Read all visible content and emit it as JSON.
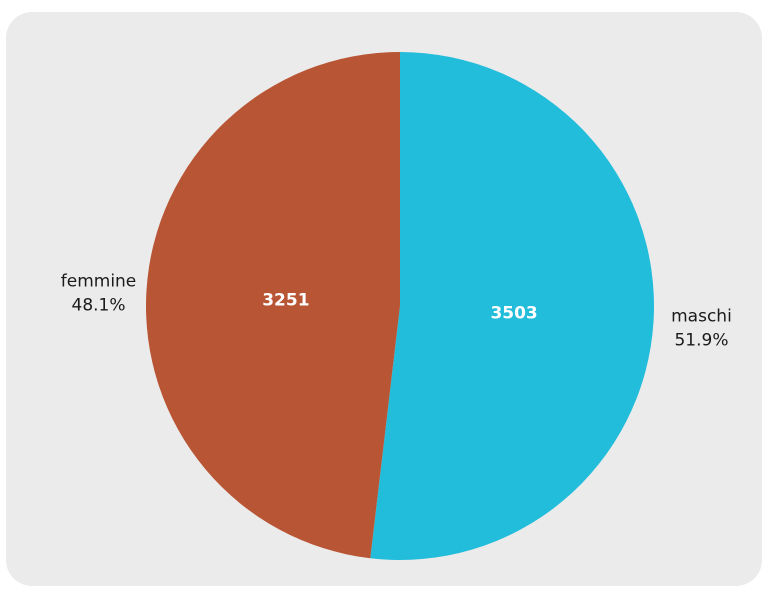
{
  "chart_data": {
    "type": "pie",
    "title": "",
    "start_angle_deg": 0,
    "direction": "clockwise",
    "slices": [
      {
        "label": "maschi",
        "value": 3503,
        "percent": "51.9%",
        "color": "#22bddb",
        "label_side": "right"
      },
      {
        "label": "femmine",
        "value": 3251,
        "percent": "48.1%",
        "color": "#b85535",
        "label_side": "left"
      }
    ]
  }
}
